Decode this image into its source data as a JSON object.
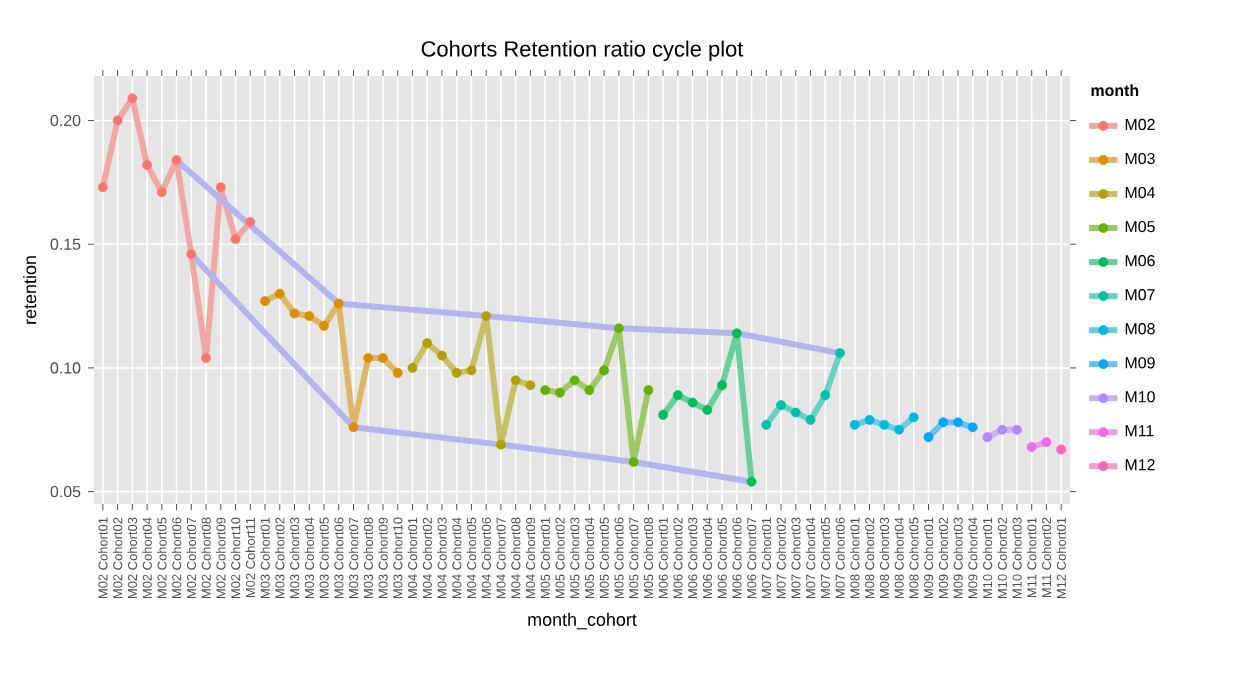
{
  "chart_data": {
    "type": "line",
    "title": "Cohorts Retention ratio cycle plot",
    "xlabel": "month_cohort",
    "ylabel": "retention",
    "legend_title": "month",
    "categories": [
      "M02 Cohort01",
      "M02 Cohort02",
      "M02 Cohort03",
      "M02 Cohort04",
      "M02 Cohort05",
      "M02 Cohort06",
      "M02 Cohort07",
      "M02 Cohort08",
      "M02 Cohort09",
      "M02 Cohort10",
      "M02 Cohort11",
      "M03 Cohort01",
      "M03 Cohort02",
      "M03 Cohort03",
      "M03 Cohort04",
      "M03 Cohort05",
      "M03 Cohort06",
      "M03 Cohort07",
      "M03 Cohort08",
      "M03 Cohort09",
      "M03 Cohort10",
      "M04 Cohort01",
      "M04 Cohort02",
      "M04 Cohort03",
      "M04 Cohort04",
      "M04 Cohort05",
      "M04 Cohort06",
      "M04 Cohort07",
      "M04 Cohort08",
      "M04 Cohort09",
      "M05 Cohort01",
      "M05 Cohort02",
      "M05 Cohort03",
      "M05 Cohort04",
      "M05 Cohort05",
      "M05 Cohort06",
      "M05 Cohort07",
      "M05 Cohort08",
      "M06 Cohort01",
      "M06 Cohort02",
      "M06 Cohort03",
      "M06 Cohort04",
      "M06 Cohort05",
      "M06 Cohort06",
      "M06 Cohort07",
      "M07 Cohort01",
      "M07 Cohort02",
      "M07 Cohort03",
      "M07 Cohort04",
      "M07 Cohort05",
      "M07 Cohort06",
      "M08 Cohort01",
      "M08 Cohort02",
      "M08 Cohort03",
      "M08 Cohort04",
      "M08 Cohort05",
      "M09 Cohort01",
      "M09 Cohort02",
      "M09 Cohort03",
      "M09 Cohort04",
      "M10 Cohort01",
      "M10 Cohort02",
      "M10 Cohort03",
      "M11 Cohort01",
      "M11 Cohort02",
      "M12 Cohort01"
    ],
    "series": [
      {
        "name": "M02",
        "color": "#f8766d",
        "values": [
          0.173,
          0.2,
          0.209,
          0.182,
          0.171,
          0.184,
          0.146,
          0.104,
          0.173,
          0.152,
          0.159,
          null,
          null,
          null,
          null,
          null,
          null,
          null,
          null,
          null,
          null,
          null,
          null,
          null,
          null,
          null,
          null,
          null,
          null,
          null,
          null,
          null,
          null,
          null,
          null,
          null,
          null,
          null,
          null,
          null,
          null,
          null,
          null,
          null,
          null,
          null,
          null,
          null,
          null,
          null,
          null,
          null,
          null,
          null,
          null,
          null,
          null,
          null,
          null,
          null,
          null,
          null,
          null,
          null,
          null,
          null
        ]
      },
      {
        "name": "M03",
        "color": "#db8e00",
        "values": [
          null,
          null,
          null,
          null,
          null,
          null,
          null,
          null,
          null,
          null,
          null,
          0.127,
          0.13,
          0.122,
          0.121,
          0.117,
          0.126,
          0.076,
          0.104,
          0.104,
          0.098,
          null,
          null,
          null,
          null,
          null,
          null,
          null,
          null,
          null,
          null,
          null,
          null,
          null,
          null,
          null,
          null,
          null,
          null,
          null,
          null,
          null,
          null,
          null,
          null,
          null,
          null,
          null,
          null,
          null,
          null,
          null,
          null,
          null,
          null,
          null,
          null,
          null,
          null,
          null,
          null,
          null,
          null,
          null,
          null,
          null
        ]
      },
      {
        "name": "M04",
        "color": "#aea200",
        "values": [
          null,
          null,
          null,
          null,
          null,
          null,
          null,
          null,
          null,
          null,
          null,
          null,
          null,
          null,
          null,
          null,
          null,
          null,
          null,
          null,
          null,
          0.1,
          0.11,
          0.105,
          0.098,
          0.099,
          0.121,
          0.069,
          0.095,
          0.093,
          null,
          null,
          null,
          null,
          null,
          null,
          null,
          null,
          null,
          null,
          null,
          null,
          null,
          null,
          null,
          null,
          null,
          null,
          null,
          null,
          null,
          null,
          null,
          null,
          null,
          null,
          null,
          null,
          null,
          null,
          null,
          null,
          null,
          null,
          null,
          null
        ]
      },
      {
        "name": "M05",
        "color": "#64b200",
        "values": [
          null,
          null,
          null,
          null,
          null,
          null,
          null,
          null,
          null,
          null,
          null,
          null,
          null,
          null,
          null,
          null,
          null,
          null,
          null,
          null,
          null,
          null,
          null,
          null,
          null,
          null,
          null,
          null,
          null,
          null,
          0.091,
          0.09,
          0.095,
          0.091,
          0.099,
          0.116,
          0.062,
          0.091,
          null,
          null,
          null,
          null,
          null,
          null,
          null,
          null,
          null,
          null,
          null,
          null,
          null,
          null,
          null,
          null,
          null,
          null,
          null,
          null,
          null,
          null,
          null,
          null,
          null,
          null,
          null,
          null
        ]
      },
      {
        "name": "M06",
        "color": "#00bd5c",
        "values": [
          null,
          null,
          null,
          null,
          null,
          null,
          null,
          null,
          null,
          null,
          null,
          null,
          null,
          null,
          null,
          null,
          null,
          null,
          null,
          null,
          null,
          null,
          null,
          null,
          null,
          null,
          null,
          null,
          null,
          null,
          null,
          null,
          null,
          null,
          null,
          null,
          null,
          null,
          0.081,
          0.089,
          0.086,
          0.083,
          0.093,
          0.114,
          0.054,
          null,
          null,
          null,
          null,
          null,
          null,
          null,
          null,
          null,
          null,
          null,
          null,
          null,
          null,
          null,
          null,
          null,
          null,
          null,
          null,
          null
        ]
      },
      {
        "name": "M07",
        "color": "#00c1a7",
        "values": [
          null,
          null,
          null,
          null,
          null,
          null,
          null,
          null,
          null,
          null,
          null,
          null,
          null,
          null,
          null,
          null,
          null,
          null,
          null,
          null,
          null,
          null,
          null,
          null,
          null,
          null,
          null,
          null,
          null,
          null,
          null,
          null,
          null,
          null,
          null,
          null,
          null,
          null,
          null,
          null,
          null,
          null,
          null,
          null,
          null,
          0.077,
          0.085,
          0.082,
          0.079,
          0.089,
          0.106,
          null,
          null,
          null,
          null,
          null,
          null,
          null,
          null,
          null,
          null,
          null,
          null,
          null,
          null,
          null
        ]
      },
      {
        "name": "M08",
        "color": "#00bade",
        "values": [
          null,
          null,
          null,
          null,
          null,
          null,
          null,
          null,
          null,
          null,
          null,
          null,
          null,
          null,
          null,
          null,
          null,
          null,
          null,
          null,
          null,
          null,
          null,
          null,
          null,
          null,
          null,
          null,
          null,
          null,
          null,
          null,
          null,
          null,
          null,
          null,
          null,
          null,
          null,
          null,
          null,
          null,
          null,
          null,
          null,
          null,
          null,
          null,
          null,
          null,
          null,
          0.077,
          0.079,
          0.077,
          0.075,
          0.08,
          null,
          null,
          null,
          null,
          null,
          null,
          null,
          null,
          null,
          null
        ]
      },
      {
        "name": "M09",
        "color": "#00a6ff",
        "values": [
          null,
          null,
          null,
          null,
          null,
          null,
          null,
          null,
          null,
          null,
          null,
          null,
          null,
          null,
          null,
          null,
          null,
          null,
          null,
          null,
          null,
          null,
          null,
          null,
          null,
          null,
          null,
          null,
          null,
          null,
          null,
          null,
          null,
          null,
          null,
          null,
          null,
          null,
          null,
          null,
          null,
          null,
          null,
          null,
          null,
          null,
          null,
          null,
          null,
          null,
          null,
          null,
          null,
          null,
          null,
          null,
          0.072,
          0.078,
          0.078,
          0.076,
          null,
          null,
          null,
          null,
          null,
          null
        ]
      },
      {
        "name": "M10",
        "color": "#b385ff",
        "values": [
          null,
          null,
          null,
          null,
          null,
          null,
          null,
          null,
          null,
          null,
          null,
          null,
          null,
          null,
          null,
          null,
          null,
          null,
          null,
          null,
          null,
          null,
          null,
          null,
          null,
          null,
          null,
          null,
          null,
          null,
          null,
          null,
          null,
          null,
          null,
          null,
          null,
          null,
          null,
          null,
          null,
          null,
          null,
          null,
          null,
          null,
          null,
          null,
          null,
          null,
          null,
          null,
          null,
          null,
          null,
          null,
          null,
          null,
          null,
          null,
          0.072,
          0.075,
          0.075,
          null,
          null,
          null
        ]
      },
      {
        "name": "M11",
        "color": "#ef67eb",
        "values": [
          null,
          null,
          null,
          null,
          null,
          null,
          null,
          null,
          null,
          null,
          null,
          null,
          null,
          null,
          null,
          null,
          null,
          null,
          null,
          null,
          null,
          null,
          null,
          null,
          null,
          null,
          null,
          null,
          null,
          null,
          null,
          null,
          null,
          null,
          null,
          null,
          null,
          null,
          null,
          null,
          null,
          null,
          null,
          null,
          null,
          null,
          null,
          null,
          null,
          null,
          null,
          null,
          null,
          null,
          null,
          null,
          null,
          null,
          null,
          null,
          null,
          null,
          null,
          0.068,
          0.07,
          null
        ]
      },
      {
        "name": "M12",
        "color": "#ff63b6",
        "values": [
          null,
          null,
          null,
          null,
          null,
          null,
          null,
          null,
          null,
          null,
          null,
          null,
          null,
          null,
          null,
          null,
          null,
          null,
          null,
          null,
          null,
          null,
          null,
          null,
          null,
          null,
          null,
          null,
          null,
          null,
          null,
          null,
          null,
          null,
          null,
          null,
          null,
          null,
          null,
          null,
          null,
          null,
          null,
          null,
          null,
          null,
          null,
          null,
          null,
          null,
          null,
          null,
          null,
          null,
          null,
          null,
          null,
          null,
          null,
          null,
          null,
          null,
          null,
          null,
          null,
          0.067
        ]
      },
      {
        "color": "#b4b4f0",
        "marker": "none",
        "values": [
          null,
          null,
          null,
          null,
          null,
          0.184,
          null,
          null,
          null,
          null,
          null,
          null,
          null,
          null,
          null,
          null,
          0.126,
          null,
          null,
          null,
          null,
          null,
          null,
          null,
          null,
          null,
          0.121,
          null,
          null,
          null,
          null,
          null,
          null,
          null,
          null,
          0.116,
          null,
          null,
          null,
          null,
          null,
          null,
          null,
          0.114,
          null,
          null,
          null,
          null,
          null,
          null,
          0.106,
          null,
          null,
          null,
          null,
          null,
          null,
          null,
          null,
          null,
          null,
          null,
          null,
          null,
          null,
          null
        ]
      },
      {
        "color": "#b4b4f0",
        "marker": "none",
        "values": [
          null,
          null,
          null,
          null,
          null,
          null,
          0.146,
          null,
          null,
          null,
          null,
          null,
          null,
          null,
          null,
          null,
          null,
          0.076,
          null,
          null,
          null,
          null,
          null,
          null,
          null,
          null,
          null,
          0.069,
          null,
          null,
          null,
          null,
          null,
          null,
          null,
          null,
          0.062,
          null,
          null,
          null,
          null,
          null,
          null,
          null,
          0.054,
          null,
          null,
          null,
          null,
          null,
          null,
          null,
          null,
          null,
          null,
          null,
          null,
          null,
          null,
          null,
          null,
          null,
          null,
          null,
          null,
          null
        ]
      }
    ],
    "ylim": [
      0.045,
      0.218
    ],
    "yticks": [
      {
        "value": 0.05,
        "label": "0.05"
      },
      {
        "value": 0.1,
        "label": "0.10"
      },
      {
        "value": 0.15,
        "label": "0.15"
      },
      {
        "value": 0.2,
        "label": "0.20"
      }
    ],
    "grid": true,
    "legend": "right",
    "marker": "circle"
  }
}
